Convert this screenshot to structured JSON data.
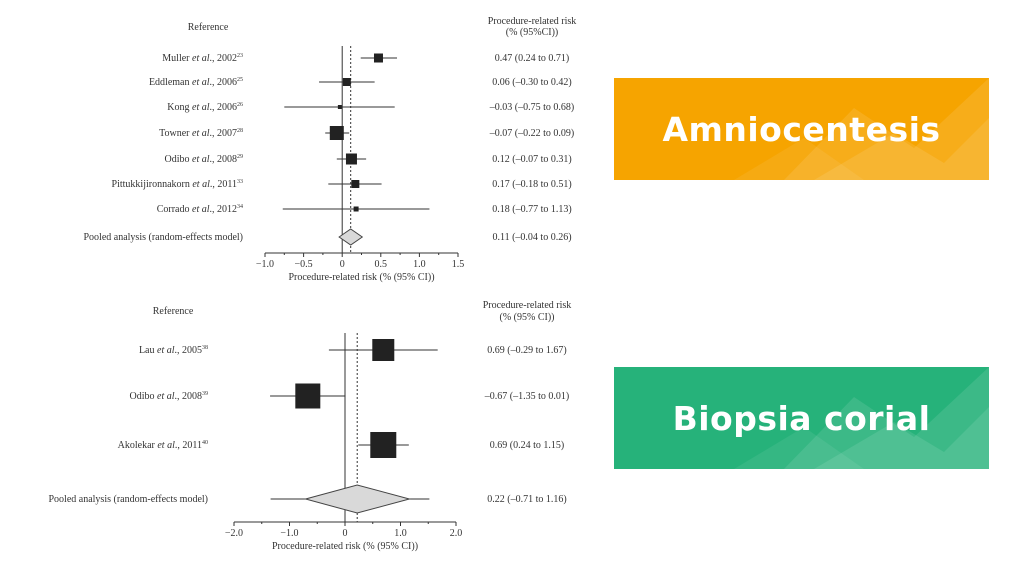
{
  "banners": {
    "amnio": {
      "label": "Amniocentesis",
      "color": "#f6a400"
    },
    "biopsia": {
      "label": "Biopsia corial",
      "color": "#26b27a"
    }
  },
  "chart_data": [
    {
      "type": "forest",
      "reference_header": "Reference",
      "risk_header": [
        "Procedure-related risk",
        "(% (95%CI))"
      ],
      "xlabel": "Procedure-related risk (% (95% CI))",
      "xlim": [
        -1.0,
        1.5
      ],
      "xticks": [
        "−1.0",
        "−0.5",
        "0",
        "0.5",
        "1.0",
        "1.5"
      ],
      "reference_line": 0,
      "pooled_line": 0.11,
      "studies": [
        {
          "author": "Muller",
          "year": "2002",
          "ref": "23",
          "est": 0.47,
          "lo": 0.24,
          "hi": 0.71,
          "text": "0.47 (0.24 to 0.71)"
        },
        {
          "author": "Eddleman",
          "year": "2006",
          "ref": "25",
          "est": 0.06,
          "lo": -0.3,
          "hi": 0.42,
          "text": "0.06 (–0.30 to 0.42)"
        },
        {
          "author": "Kong",
          "year": "2006",
          "ref": "26",
          "est": -0.03,
          "lo": -0.75,
          "hi": 0.68,
          "text": "–0.03 (–0.75 to 0.68)"
        },
        {
          "author": "Towner",
          "year": "2007",
          "ref": "28",
          "est": -0.07,
          "lo": -0.22,
          "hi": 0.09,
          "text": "–0.07 (–0.22 to 0.09)"
        },
        {
          "author": "Odibo",
          "year": "2008",
          "ref": "29",
          "est": 0.12,
          "lo": -0.07,
          "hi": 0.31,
          "text": "0.12 (–0.07 to 0.31)"
        },
        {
          "author": "Pittukkijironnakorn",
          "year": "2011",
          "ref": "33",
          "est": 0.17,
          "lo": -0.18,
          "hi": 0.51,
          "text": "0.17 (–0.18 to 0.51)"
        },
        {
          "author": "Corrado",
          "year": "2012",
          "ref": "34",
          "est": 0.18,
          "lo": -0.77,
          "hi": 1.13,
          "text": "0.18 (–0.77 to 1.13)"
        }
      ],
      "pooled": {
        "label": "Pooled analysis (random-effects model)",
        "est": 0.11,
        "lo": -0.04,
        "hi": 0.26,
        "text": "0.11 (–0.04 to 0.26)"
      }
    },
    {
      "type": "forest",
      "reference_header": "Reference",
      "risk_header": [
        "Procedure-related risk",
        "(% (95% CI))"
      ],
      "xlabel": "Procedure-related risk (% (95% CI))",
      "xlim": [
        -2.0,
        2.0
      ],
      "xticks": [
        "−2.0",
        "−1.0",
        "0",
        "1.0",
        "2.0"
      ],
      "reference_line": 0,
      "pooled_line": 0.22,
      "studies": [
        {
          "author": "Lau",
          "year": "2005",
          "ref": "38",
          "est": 0.69,
          "lo": -0.29,
          "hi": 1.67,
          "text": "0.69 (–0.29 to 1.67)"
        },
        {
          "author": "Odibo",
          "year": "2008",
          "ref": "39",
          "est": -0.67,
          "lo": -1.35,
          "hi": 0.01,
          "text": "–0.67 (–1.35 to 0.01)"
        },
        {
          "author": "Akolekar",
          "year": "2011",
          "ref": "40",
          "est": 0.69,
          "lo": 0.24,
          "hi": 1.15,
          "text": "0.69 (0.24 to 1.15)"
        }
      ],
      "pooled": {
        "label": "Pooled analysis (random-effects model)",
        "est": 0.22,
        "lo": -0.71,
        "hi": 1.16,
        "text": "0.22 (–0.71 to 1.16)"
      }
    }
  ]
}
